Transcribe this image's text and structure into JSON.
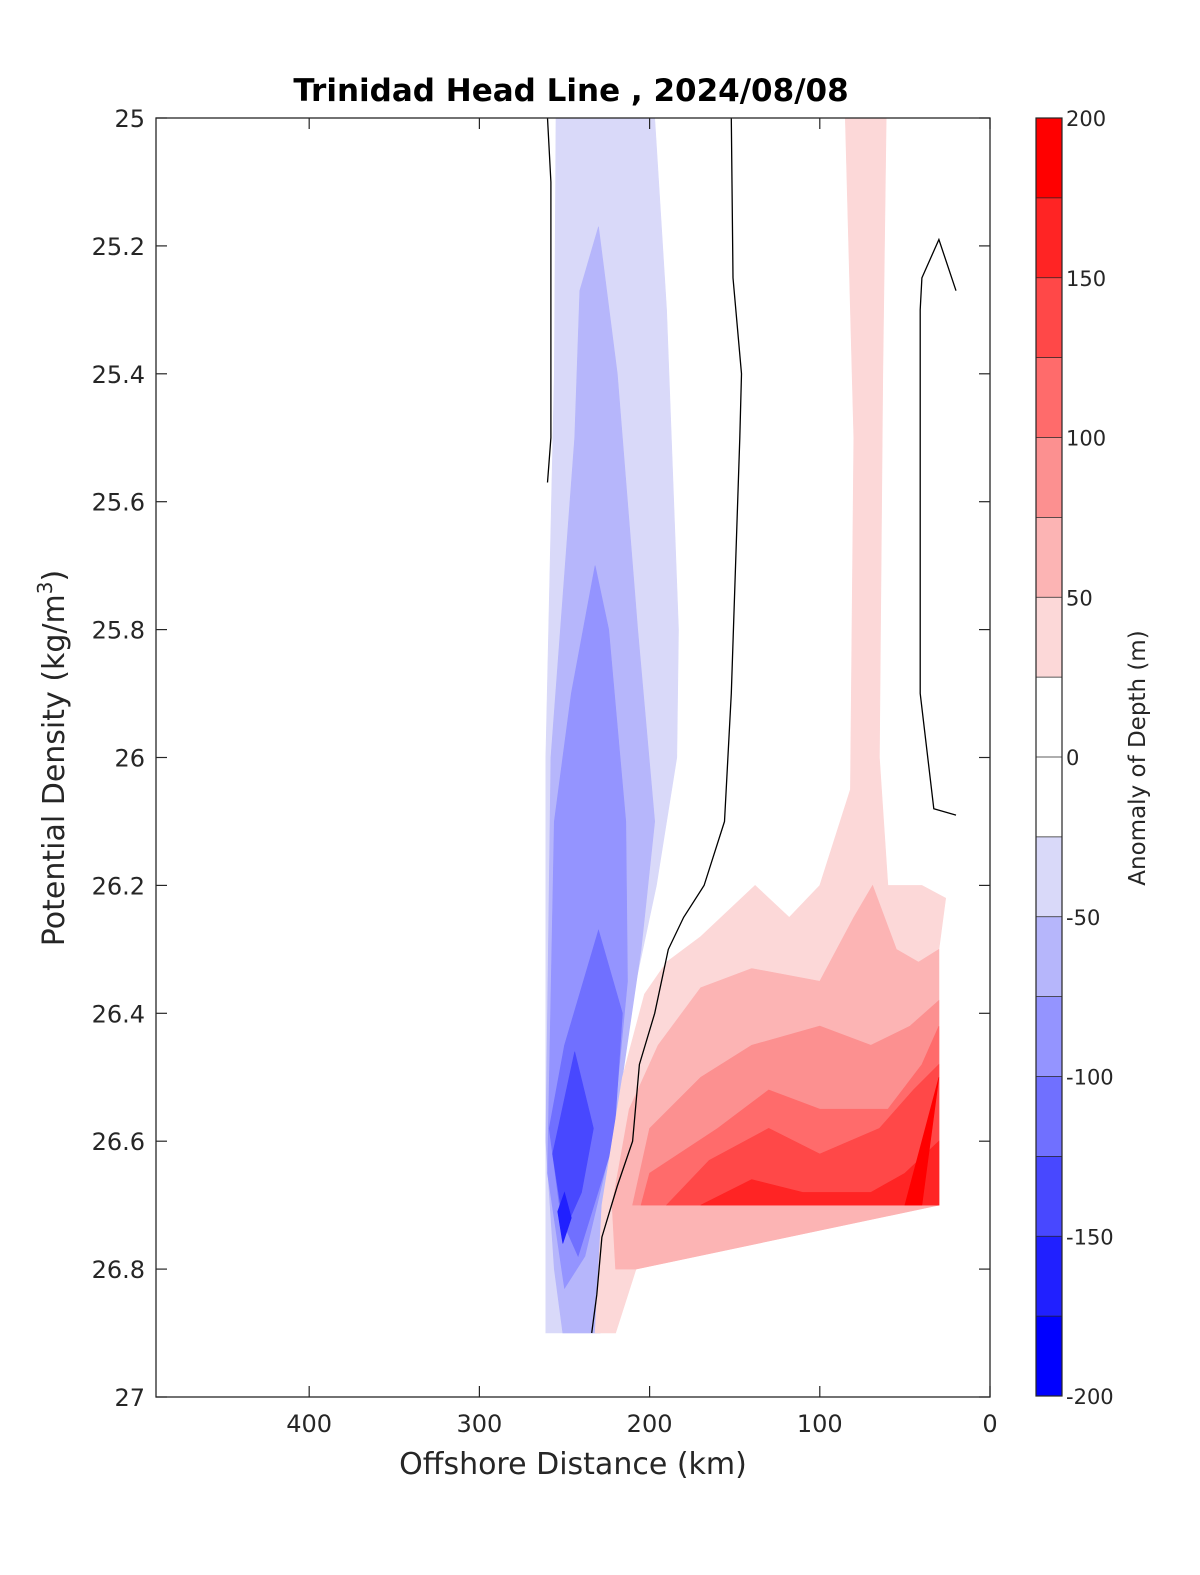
{
  "chart_data": {
    "type": "contour",
    "title": "Trinidad Head Line , 2024/08/08",
    "xlabel": "Offshore Distance (km)",
    "ylabel_main": "Potential Density (kg/m",
    "ylabel_sup": "3",
    "ylabel_close": ")",
    "xlim": [
      490,
      0
    ],
    "ylim": [
      25,
      27
    ],
    "x_reversed": true,
    "y_reversed": true,
    "x_ticks": [
      "400",
      "300",
      "200",
      "100",
      "0"
    ],
    "y_ticks": [
      "25",
      "25.2",
      "25.4",
      "25.6",
      "25.8",
      "26",
      "26.2",
      "26.4",
      "26.6",
      "26.8",
      "27"
    ],
    "colorbar": {
      "label": "Anomaly of Depth (m)",
      "ticks": [
        "200",
        "150",
        "100",
        "50",
        "0",
        "-50",
        "-100",
        "-150",
        "-200"
      ],
      "range": [
        -200,
        200
      ],
      "level_step": 25,
      "colors_low_to_high": [
        "#0000ff",
        "#2020ff",
        "#4848ff",
        "#7070ff",
        "#9494ff",
        "#b6b6fb",
        "#d9d9f9",
        "#ffffff",
        "#ffffff",
        "#fcd8d8",
        "#fcb4b4",
        "#fc9090",
        "#ff6b6b",
        "#ff4848",
        "#ff2424",
        "#ff0000"
      ]
    },
    "contours": [
      {
        "level": -50,
        "color": "#d9d9f9",
        "points": [
          [
            255,
            25.0
          ],
          [
            197,
            25.0
          ],
          [
            190,
            25.3
          ],
          [
            183,
            25.8
          ],
          [
            184,
            26.0
          ],
          [
            196,
            26.2
          ],
          [
            212,
            26.4
          ],
          [
            222,
            26.55
          ],
          [
            229,
            26.7
          ],
          [
            231,
            26.9
          ],
          [
            261,
            26.9
          ],
          [
            261,
            26.0
          ],
          [
            256,
            25.4
          ],
          [
            255,
            25.0
          ]
        ]
      },
      {
        "level": -75,
        "color": "#b6b6fb",
        "points": [
          [
            241,
            25.27
          ],
          [
            230,
            25.17
          ],
          [
            219,
            25.4
          ],
          [
            207,
            25.8
          ],
          [
            197,
            26.1
          ],
          [
            205,
            26.3
          ],
          [
            216,
            26.5
          ],
          [
            226,
            26.7
          ],
          [
            229,
            26.9
          ],
          [
            251,
            26.9
          ],
          [
            256,
            26.8
          ],
          [
            261,
            26.6
          ],
          [
            258,
            26.0
          ],
          [
            244,
            25.5
          ],
          [
            241,
            25.27
          ]
        ]
      },
      {
        "level": -100,
        "color": "#9494ff",
        "points": [
          [
            232,
            25.7
          ],
          [
            224,
            25.8
          ],
          [
            214,
            26.1
          ],
          [
            213,
            26.35
          ],
          [
            222,
            26.6
          ],
          [
            238,
            26.78
          ],
          [
            250,
            26.83
          ],
          [
            260,
            26.65
          ],
          [
            256,
            26.1
          ],
          [
            246,
            25.9
          ],
          [
            232,
            25.7
          ]
        ]
      },
      {
        "level": -125,
        "color": "#7070ff",
        "points": [
          [
            230,
            26.27
          ],
          [
            216,
            26.4
          ],
          [
            221,
            26.6
          ],
          [
            242,
            26.78
          ],
          [
            252,
            26.72
          ],
          [
            259,
            26.58
          ],
          [
            250,
            26.45
          ],
          [
            230,
            26.27
          ]
        ]
      },
      {
        "level": -150,
        "color": "#4848ff",
        "points": [
          [
            244,
            26.46
          ],
          [
            233,
            26.58
          ],
          [
            240,
            26.68
          ],
          [
            250,
            26.74
          ],
          [
            257,
            26.62
          ],
          [
            244,
            26.46
          ]
        ]
      },
      {
        "level": -175,
        "color": "#2020ff",
        "points": [
          [
            250,
            26.68
          ],
          [
            246,
            26.72
          ],
          [
            251,
            26.76
          ],
          [
            254,
            26.71
          ],
          [
            250,
            26.68
          ]
        ]
      },
      {
        "level": 25,
        "color": "#fcd8d8",
        "points": [
          [
            85,
            25.0
          ],
          [
            61,
            25.0
          ],
          [
            63,
            25.4
          ],
          [
            65,
            26.0
          ],
          [
            60,
            26.2
          ],
          [
            40,
            26.2
          ],
          [
            26,
            26.22
          ],
          [
            30,
            26.3
          ],
          [
            30,
            26.7
          ],
          [
            208,
            26.8
          ],
          [
            220,
            26.9
          ],
          [
            232,
            26.9
          ],
          [
            228,
            26.7
          ],
          [
            216,
            26.5
          ],
          [
            203,
            26.37
          ],
          [
            190,
            26.32
          ],
          [
            170,
            26.28
          ],
          [
            138,
            26.2
          ],
          [
            118,
            26.25
          ],
          [
            100,
            26.2
          ],
          [
            82,
            26.05
          ],
          [
            80,
            25.5
          ],
          [
            85,
            25.0
          ]
        ]
      },
      {
        "level": 50,
        "color": "#fcb4b4",
        "points": [
          [
            30,
            26.3
          ],
          [
            42,
            26.32
          ],
          [
            55,
            26.3
          ],
          [
            69,
            26.2
          ],
          [
            80,
            26.25
          ],
          [
            100,
            26.35
          ],
          [
            140,
            26.33
          ],
          [
            170,
            26.36
          ],
          [
            195,
            26.45
          ],
          [
            212,
            26.55
          ],
          [
            222,
            26.7
          ],
          [
            220,
            26.8
          ],
          [
            208,
            26.8
          ],
          [
            30,
            26.7
          ],
          [
            30,
            26.3
          ]
        ]
      },
      {
        "level": 75,
        "color": "#fc9090",
        "points": [
          [
            30,
            26.38
          ],
          [
            47,
            26.42
          ],
          [
            70,
            26.45
          ],
          [
            100,
            26.42
          ],
          [
            140,
            26.45
          ],
          [
            170,
            26.5
          ],
          [
            200,
            26.58
          ],
          [
            210,
            26.7
          ],
          [
            30,
            26.7
          ],
          [
            30,
            26.38
          ]
        ]
      },
      {
        "level": 100,
        "color": "#ff6b6b",
        "points": [
          [
            30,
            26.42
          ],
          [
            40,
            26.48
          ],
          [
            60,
            26.55
          ],
          [
            100,
            26.55
          ],
          [
            130,
            26.52
          ],
          [
            160,
            26.58
          ],
          [
            200,
            26.65
          ],
          [
            205,
            26.7
          ],
          [
            30,
            26.7
          ],
          [
            30,
            26.42
          ]
        ]
      },
      {
        "level": 125,
        "color": "#ff4848",
        "points": [
          [
            30,
            26.48
          ],
          [
            45,
            26.52
          ],
          [
            65,
            26.58
          ],
          [
            100,
            26.62
          ],
          [
            130,
            26.58
          ],
          [
            165,
            26.63
          ],
          [
            190,
            26.7
          ],
          [
            30,
            26.7
          ],
          [
            30,
            26.48
          ]
        ]
      },
      {
        "level": 150,
        "color": "#ff2424",
        "points": [
          [
            30,
            26.6
          ],
          [
            50,
            26.65
          ],
          [
            70,
            26.68
          ],
          [
            110,
            26.68
          ],
          [
            140,
            26.66
          ],
          [
            170,
            26.7
          ],
          [
            30,
            26.7
          ],
          [
            30,
            26.6
          ]
        ]
      },
      {
        "level": 175,
        "color": "#ff0000",
        "points": [
          [
            30,
            26.5
          ],
          [
            50,
            26.7
          ],
          [
            40,
            26.7
          ],
          [
            30,
            26.5
          ]
        ]
      }
    ],
    "zero_lines": [
      [
        [
          260,
          25.0
        ],
        [
          258,
          25.1
        ],
        [
          258,
          25.5
        ],
        [
          260,
          25.57
        ]
      ],
      [
        [
          152,
          25.0
        ],
        [
          151,
          25.25
        ],
        [
          146,
          25.4
        ],
        [
          147,
          25.5
        ],
        [
          152,
          25.9
        ],
        [
          156,
          26.1
        ],
        [
          168,
          26.2
        ],
        [
          180,
          26.25
        ],
        [
          189,
          26.3
        ],
        [
          197,
          26.4
        ],
        [
          206,
          26.48
        ],
        [
          210,
          26.6
        ],
        [
          219,
          26.67
        ],
        [
          228,
          26.75
        ],
        [
          231,
          26.84
        ],
        [
          234,
          26.9
        ]
      ],
      [
        [
          20,
          25.27
        ],
        [
          30,
          25.19
        ],
        [
          40,
          25.25
        ],
        [
          41,
          25.3
        ],
        [
          41,
          25.9
        ],
        [
          33,
          26.08
        ],
        [
          20,
          26.09
        ]
      ]
    ]
  }
}
